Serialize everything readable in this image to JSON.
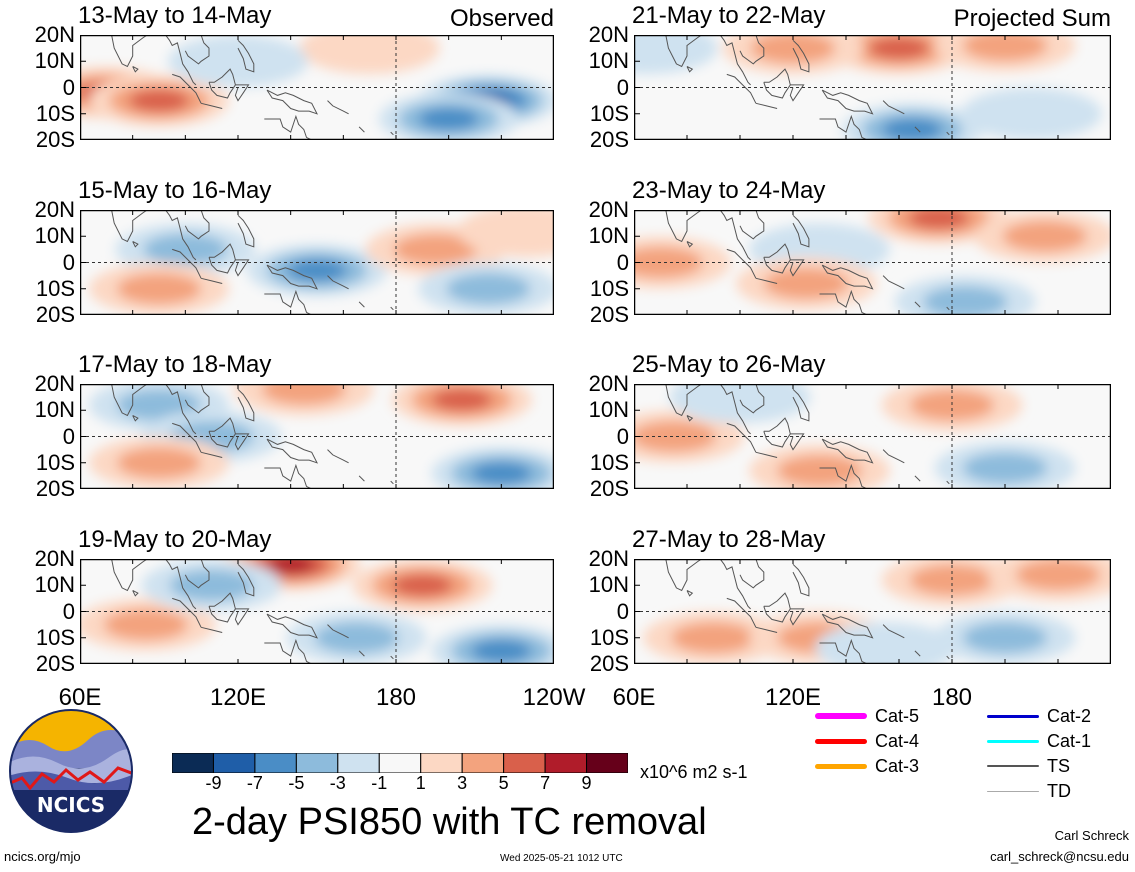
{
  "panels": [
    {
      "title": "13-May to 14-May",
      "tag": "Observed"
    },
    {
      "title": "15-May to 16-May",
      "tag": ""
    },
    {
      "title": "17-May to 18-May",
      "tag": ""
    },
    {
      "title": "19-May to 20-May",
      "tag": ""
    },
    {
      "title": "21-May to 22-May",
      "tag": "Projected Sum"
    },
    {
      "title": "23-May to 24-May",
      "tag": ""
    },
    {
      "title": "25-May to 26-May",
      "tag": ""
    },
    {
      "title": "27-May to 28-May",
      "tag": ""
    }
  ],
  "lat_labels": [
    "20N",
    "10N",
    "0",
    "10S",
    "20S"
  ],
  "lon_labels": [
    "60E",
    "120E",
    "180",
    "120W"
  ],
  "colorbar": {
    "levels": [
      "-9",
      "-7",
      "-5",
      "-3",
      "-1",
      "1",
      "3",
      "5",
      "7",
      "9"
    ],
    "colors": [
      "#0b2b55",
      "#1f5ea8",
      "#4a8dc6",
      "#8dbbdc",
      "#cfe2f0",
      "#f8f8f8",
      "#fcd8c4",
      "#f3a37e",
      "#d9604b",
      "#b01c2a",
      "#66001a"
    ],
    "units": "x10^6 m2 s-1"
  },
  "legend": [
    {
      "label": "Cat-5",
      "color": "#ff00ff"
    },
    {
      "label": "Cat-4",
      "color": "#ff0000"
    },
    {
      "label": "Cat-3",
      "color": "#ffa500"
    },
    {
      "label": "Cat-2",
      "color": "#0000cc"
    },
    {
      "label": "Cat-1",
      "color": "#00ffff"
    },
    {
      "label": "TS",
      "color": "#555555"
    },
    {
      "label": "TD",
      "color": "#aaaaaa"
    }
  ],
  "main_title": "2-day PSI850 with TC removal",
  "logo_text": "NCICS",
  "footer": {
    "left": "ncics.org/mjo",
    "center": "Wed 2025-05-21 1012 UTC",
    "author": "Carl Schreck",
    "email": "carl_schreck@ncsu.edu"
  },
  "chart_data": {
    "type": "heatmap",
    "variable": "PSI850",
    "fields": [
      {
        "panel": "13-May to 14-May",
        "blobs": [
          {
            "lon": 70,
            "lat": -2,
            "value": 6
          },
          {
            "lon": 90,
            "lat": -5,
            "value": 5
          },
          {
            "lon": 170,
            "lat": 15,
            "value": 2
          },
          {
            "lon": 215,
            "lat": -5,
            "value": -7
          },
          {
            "lon": 200,
            "lat": -12,
            "value": -5
          },
          {
            "lon": 120,
            "lat": 10,
            "value": -2
          }
        ]
      },
      {
        "panel": "15-May to 16-May",
        "blobs": [
          {
            "lon": 100,
            "lat": 5,
            "value": -4
          },
          {
            "lon": 150,
            "lat": -3,
            "value": -5
          },
          {
            "lon": 195,
            "lat": 5,
            "value": 4
          },
          {
            "lon": 90,
            "lat": -10,
            "value": 3
          },
          {
            "lon": 230,
            "lat": 12,
            "value": 2
          },
          {
            "lon": 215,
            "lat": -10,
            "value": -3
          }
        ]
      },
      {
        "panel": "17-May to 18-May",
        "blobs": [
          {
            "lon": 90,
            "lat": 12,
            "value": -3
          },
          {
            "lon": 110,
            "lat": 0,
            "value": -3
          },
          {
            "lon": 145,
            "lat": 18,
            "value": 4
          },
          {
            "lon": 205,
            "lat": 14,
            "value": 5
          },
          {
            "lon": 90,
            "lat": -10,
            "value": 3
          },
          {
            "lon": 220,
            "lat": -14,
            "value": -5
          }
        ]
      },
      {
        "panel": "19-May to 20-May",
        "blobs": [
          {
            "lon": 140,
            "lat": 18,
            "value": 7
          },
          {
            "lon": 190,
            "lat": 10,
            "value": 5
          },
          {
            "lon": 85,
            "lat": -5,
            "value": 3
          },
          {
            "lon": 110,
            "lat": 10,
            "value": -3
          },
          {
            "lon": 165,
            "lat": -10,
            "value": -3
          },
          {
            "lon": 220,
            "lat": -15,
            "value": -5
          }
        ]
      },
      {
        "panel": "21-May to 22-May",
        "blobs": [
          {
            "lon": 160,
            "lat": 15,
            "value": 6
          },
          {
            "lon": 200,
            "lat": 16,
            "value": 4
          },
          {
            "lon": 120,
            "lat": 15,
            "value": 3
          },
          {
            "lon": 165,
            "lat": -16,
            "value": -6
          },
          {
            "lon": 65,
            "lat": 15,
            "value": -2
          },
          {
            "lon": 210,
            "lat": -10,
            "value": -2
          }
        ]
      },
      {
        "panel": "23-May to 24-May",
        "blobs": [
          {
            "lon": 175,
            "lat": 17,
            "value": 5
          },
          {
            "lon": 215,
            "lat": 10,
            "value": 3
          },
          {
            "lon": 70,
            "lat": 0,
            "value": 3
          },
          {
            "lon": 130,
            "lat": 5,
            "value": -2
          },
          {
            "lon": 185,
            "lat": -15,
            "value": -4
          },
          {
            "lon": 125,
            "lat": -8,
            "value": 3
          }
        ]
      },
      {
        "panel": "25-May to 26-May",
        "blobs": [
          {
            "lon": 75,
            "lat": 0,
            "value": 4
          },
          {
            "lon": 180,
            "lat": 12,
            "value": 3
          },
          {
            "lon": 130,
            "lat": -13,
            "value": 4
          },
          {
            "lon": 200,
            "lat": -12,
            "value": -3
          },
          {
            "lon": 100,
            "lat": 15,
            "value": -2
          }
        ]
      },
      {
        "panel": "27-May to 28-May",
        "blobs": [
          {
            "lon": 90,
            "lat": -10,
            "value": 3
          },
          {
            "lon": 130,
            "lat": -10,
            "value": 4
          },
          {
            "lon": 180,
            "lat": 12,
            "value": 3
          },
          {
            "lon": 220,
            "lat": 14,
            "value": 4
          },
          {
            "lon": 155,
            "lat": -14,
            "value": -2
          },
          {
            "lon": 200,
            "lat": -10,
            "value": -3
          }
        ]
      }
    ],
    "x_range": [
      "60E",
      "120W"
    ],
    "y_range": [
      "20S",
      "20N"
    ],
    "grid_lines": [
      "0",
      "180"
    ]
  }
}
